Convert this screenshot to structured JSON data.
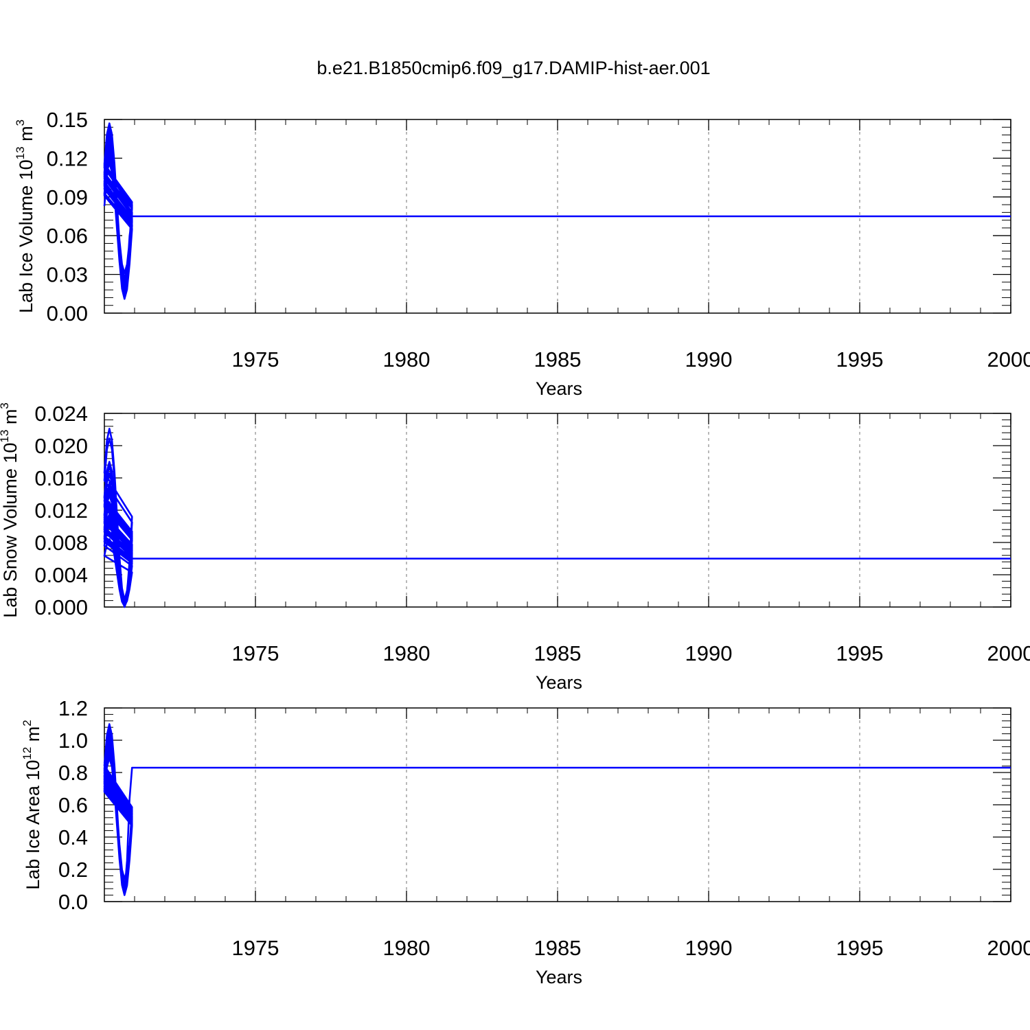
{
  "figure_title": "b.e21.B1850cmip6.f09_g17.DAMIP-hist-aer.001",
  "series_color": "#0000ff",
  "chart_data": [
    {
      "type": "line",
      "ylabel": {
        "text": "Lab Ice Volume 10",
        "exponent": "13",
        "unit": " m",
        "unit_exp": "3"
      },
      "xlabel": "Years",
      "xlim": [
        1970.0,
        2000.0
      ],
      "ylim": [
        0.0,
        0.15
      ],
      "xticks": [
        1975,
        1980,
        1985,
        1990,
        1995,
        2000
      ],
      "xtick_labels": [
        "1975",
        "1980",
        "1985",
        "1990",
        "1995",
        "2000"
      ],
      "yticks": [
        0.0,
        0.03,
        0.06,
        0.09,
        0.12,
        0.15
      ],
      "ytick_labels": [
        "0.00",
        "0.03",
        "0.06",
        "0.09",
        "0.12",
        "0.15"
      ],
      "grid": "vertical dashed at major x ticks",
      "series": [
        {
          "start_year": 1970,
          "step": "monthly",
          "peaks": [
            0.127,
            0.138,
            0.14,
            0.145,
            0.118,
            0.128,
            0.12,
            0.116,
            0.128,
            0.126,
            0.117,
            0.142,
            0.147,
            0.145,
            0.136,
            0.128,
            0.143,
            0.145,
            0.127,
            0.127,
            0.131,
            0.133,
            0.131,
            0.136,
            0.127,
            0.137,
            0.128,
            0.124,
            0.128,
            0.117
          ],
          "troughs": [
            0.016,
            0.016,
            0.02,
            0.017,
            0.016,
            0.011,
            0.02,
            0.017,
            0.015,
            0.018,
            0.025,
            0.021,
            0.023,
            0.026,
            0.013,
            0.021,
            0.027,
            0.015,
            0.016,
            0.014,
            0.018,
            0.031,
            0.015,
            0.016,
            0.017,
            0.019,
            0.013,
            0.014,
            0.013,
            0.014
          ],
          "start_value": 0.083,
          "end_value": 0.075
        }
      ]
    },
    {
      "type": "line",
      "ylabel": {
        "text": "Lab Snow Volume 10",
        "exponent": "13",
        "unit": " m",
        "unit_exp": "3"
      },
      "xlabel": "Years",
      "xlim": [
        1970.0,
        2000.0
      ],
      "ylim": [
        0.0,
        0.024
      ],
      "xticks": [
        1975,
        1980,
        1985,
        1990,
        1995,
        2000
      ],
      "xtick_labels": [
        "1975",
        "1980",
        "1985",
        "1990",
        "1995",
        "2000"
      ],
      "yticks": [
        0.0,
        0.004,
        0.008,
        0.012,
        0.016,
        0.02,
        0.024
      ],
      "ytick_labels": [
        "0.000",
        "0.004",
        "0.008",
        "0.012",
        "0.016",
        "0.020",
        "0.024"
      ],
      "grid": "vertical dashed at major x ticks",
      "series": [
        {
          "start_year": 1970,
          "step": "monthly",
          "peaks": [
            0.0154,
            0.0113,
            0.0108,
            0.0115,
            0.0179,
            0.0124,
            0.0138,
            0.0165,
            0.013,
            0.0144,
            0.0165,
            0.018,
            0.0151,
            0.0221,
            0.0178,
            0.0174,
            0.015,
            0.0152,
            0.0101,
            0.0112,
            0.0209,
            0.0166,
            0.0125,
            0.0123,
            0.0107,
            0.0139,
            0.0084,
            0.0141,
            0.0128,
            0.0147
          ],
          "troughs": [
            0.0003,
            0.0001,
            0.0005,
            0.0003,
            0.0,
            0.0001,
            0.0005,
            0.0005,
            0.0002,
            0.0001,
            0.0007,
            0.0002,
            0.0003,
            0.0009,
            0.0003,
            0.0004,
            0.0003,
            0.0001,
            0.0001,
            0.0001,
            0.0008,
            0.0008,
            0.0004,
            0.0002,
            0.0001,
            0.0002,
            0.0001,
            0.0003,
            0.0003,
            0.0002
          ],
          "start_value": 0.0108,
          "end_value": 0.006
        }
      ]
    },
    {
      "type": "line",
      "ylabel": {
        "text": "Lab Ice Area 10",
        "exponent": "12",
        "unit": " m",
        "unit_exp": "2"
      },
      "xlabel": "Years",
      "xlim": [
        1970.0,
        2000.0
      ],
      "ylim": [
        0.0,
        1.2
      ],
      "xticks": [
        1975,
        1980,
        1985,
        1990,
        1995,
        2000
      ],
      "xtick_labels": [
        "1975",
        "1980",
        "1985",
        "1990",
        "1995",
        "2000"
      ],
      "yticks": [
        0.0,
        0.2,
        0.4,
        0.6,
        0.8,
        1.0,
        1.2
      ],
      "ytick_labels": [
        "0.0",
        "0.2",
        "0.4",
        "0.6",
        "0.8",
        "1.0",
        "1.2"
      ],
      "grid": "vertical dashed at major x ticks",
      "series": [
        {
          "start_year": 1970,
          "step": "monthly",
          "peaks": [
            0.99,
            1.02,
            1.06,
            1.07,
            0.99,
            0.97,
            0.92,
            0.89,
            0.89,
            0.93,
            0.97,
            1.0,
            1.1,
            1.04,
            0.95,
            0.99,
            1.04,
            0.95,
            0.95,
            0.9,
            1.05,
            1.0,
            0.99,
            0.97,
            0.95,
            0.93,
            0.96,
            0.92,
            0.93,
            0.89
          ],
          "troughs": [
            0.06,
            0.07,
            0.08,
            0.07,
            0.05,
            0.04,
            0.08,
            0.06,
            0.06,
            0.07,
            0.09,
            0.07,
            0.08,
            0.11,
            0.05,
            0.06,
            0.09,
            0.06,
            0.06,
            0.05,
            0.08,
            0.14,
            0.05,
            0.08,
            0.06,
            0.09,
            0.04,
            0.06,
            0.05,
            0.06
          ],
          "start_value": 0.86,
          "end_value": 0.83
        }
      ]
    }
  ]
}
